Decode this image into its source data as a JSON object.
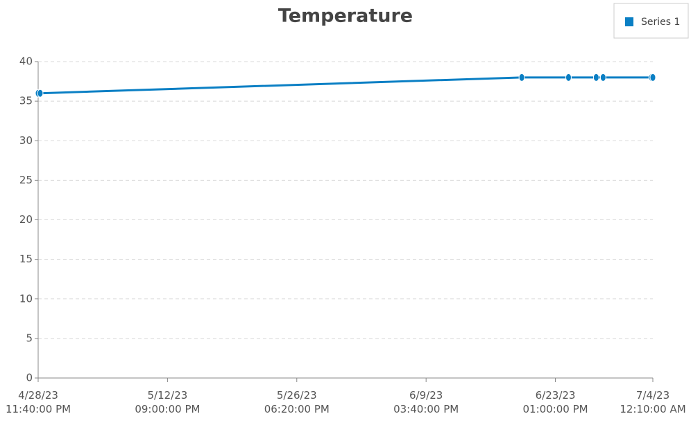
{
  "chart_data": {
    "type": "line",
    "title": "Temperature",
    "x": [
      "2023-04-28T23:40",
      "2023-04-29T05:00",
      "2023-06-19T22:20",
      "2023-06-24T22:50",
      "2023-06-27T22:10",
      "2023-06-28T16:00",
      "2023-07-03T21:00",
      "2023-07-04T00:10"
    ],
    "series": [
      {
        "name": "Series 1",
        "color": "#0a7fc4",
        "values": [
          36,
          36,
          38,
          38,
          38,
          38,
          38,
          38
        ]
      }
    ],
    "xlim": [
      "2023-04-28T23:40",
      "2023-07-04T00:10"
    ],
    "xticks": [
      {
        "value": "2023-04-28T23:40",
        "label": "4/28/23\n11:40:00 PM"
      },
      {
        "value": "2023-05-12T21:00",
        "label": "5/12/23\n09:00:00 PM"
      },
      {
        "value": "2023-05-26T18:20",
        "label": "5/26/23\n06:20:00 PM"
      },
      {
        "value": "2023-06-09T15:40",
        "label": "6/9/23\n03:40:00 PM"
      },
      {
        "value": "2023-06-23T13:00",
        "label": "6/23/23\n01:00:00 PM"
      },
      {
        "value": "2023-07-04T00:10",
        "label": "7/4/23\n12:10:00 AM"
      }
    ],
    "ylim": [
      0,
      40
    ],
    "yticks": [
      0,
      5,
      10,
      15,
      20,
      25,
      30,
      35,
      40
    ],
    "grid": true,
    "legend": "top-right"
  }
}
